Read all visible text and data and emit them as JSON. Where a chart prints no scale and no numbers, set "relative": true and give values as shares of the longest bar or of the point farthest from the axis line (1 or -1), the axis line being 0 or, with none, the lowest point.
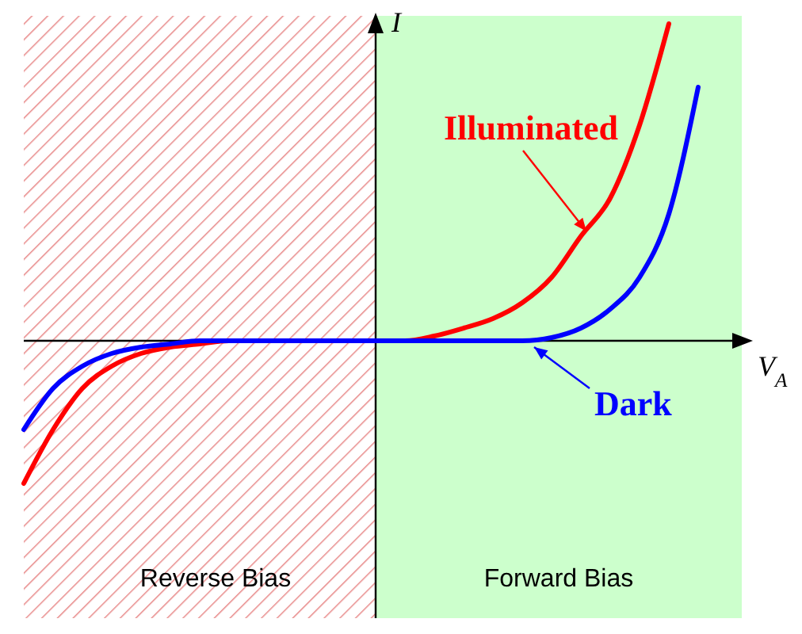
{
  "chart_data": {
    "type": "line",
    "relative": true,
    "xlabel": "V$_{A}$",
    "ylabel": "I",
    "categories": [
      null,
      null,
      null,
      null,
      null,
      null,
      null,
      null,
      null,
      null,
      null,
      null,
      null,
      null,
      null,
      null,
      null,
      null,
      null,
      null,
      null,
      null,
      null,
      null,
      null
    ],
    "series": [
      {
        "name": "Illuminated",
        "color": "#ff0000",
        "values": [
          -0.45,
          -0.28,
          -0.15,
          -0.08,
          -0.04,
          -0.02,
          -0.01,
          0,
          0,
          0,
          0,
          0,
          0,
          0,
          0.015,
          0.04,
          0.07,
          0.12,
          0.2,
          0.33,
          0.45,
          0.68,
          1.0,
          null,
          null
        ]
      },
      {
        "name": "Dark",
        "color": "#0000ff",
        "values": [
          -0.28,
          -0.15,
          -0.08,
          -0.04,
          -0.02,
          -0.01,
          0,
          0,
          0,
          0,
          0,
          0,
          0,
          0,
          0,
          0,
          0,
          0,
          0.01,
          0.04,
          0.1,
          0.2,
          0.4,
          0.8,
          null
        ]
      }
    ],
    "annotations": [
      "Reverse Bias",
      "Forward Bias"
    ]
  }
}
